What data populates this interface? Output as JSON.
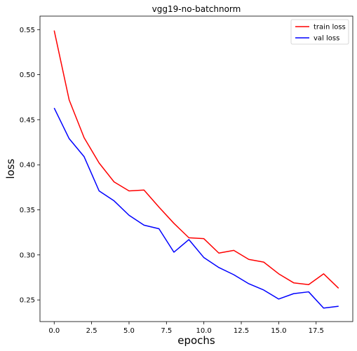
{
  "chart_data": {
    "type": "line",
    "title": "vgg19-no-batchnorm",
    "xlabel": "epochs",
    "ylabel": "loss",
    "x": [
      0,
      1,
      2,
      3,
      4,
      5,
      6,
      7,
      8,
      9,
      10,
      11,
      12,
      13,
      14,
      15,
      16,
      17,
      18,
      19
    ],
    "xlim": [
      -0.95,
      19.95
    ],
    "ylim": [
      0.226,
      0.565
    ],
    "xticks": [
      0.0,
      2.5,
      5.0,
      7.5,
      10.0,
      12.5,
      15.0,
      17.5
    ],
    "xtick_labels": [
      "0.0",
      "2.5",
      "5.0",
      "7.5",
      "10.0",
      "12.5",
      "15.0",
      "17.5"
    ],
    "yticks": [
      0.25,
      0.3,
      0.35,
      0.4,
      0.45,
      0.5,
      0.55
    ],
    "ytick_labels": [
      "0.25",
      "0.30",
      "0.35",
      "0.40",
      "0.45",
      "0.50",
      "0.55"
    ],
    "grid": false,
    "legend_position": "top-right",
    "series": [
      {
        "name": "train loss",
        "color": "#ff0000",
        "values": [
          0.549,
          0.472,
          0.43,
          0.402,
          0.381,
          0.371,
          0.372,
          0.353,
          0.335,
          0.319,
          0.318,
          0.302,
          0.305,
          0.295,
          0.292,
          0.279,
          0.269,
          0.267,
          0.279,
          0.263
        ]
      },
      {
        "name": "val loss",
        "color": "#0000ff",
        "values": [
          0.463,
          0.429,
          0.409,
          0.371,
          0.36,
          0.344,
          0.333,
          0.329,
          0.303,
          0.317,
          0.297,
          0.286,
          0.278,
          0.268,
          0.261,
          0.251,
          0.257,
          0.259,
          0.241,
          0.243
        ]
      }
    ]
  }
}
